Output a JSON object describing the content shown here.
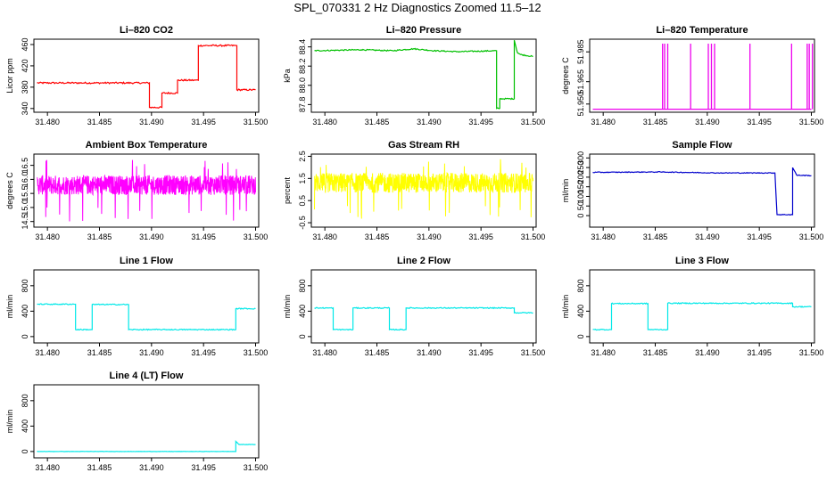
{
  "figure_title": "SPL_070331  2 Hz Diagnostics Zoomed 11.5–12",
  "chart_data": [
    {
      "type": "line",
      "title": "Li–820 CO2",
      "ylabel": "Licor ppm",
      "color": "#ff0000",
      "xlim": [
        31.4787,
        31.5003
      ],
      "ylim": [
        333,
        470
      ],
      "xticks": [
        "31.480",
        "31.485",
        "31.490",
        "31.495",
        "31.500"
      ],
      "yticks": [
        "340",
        "380",
        "420",
        "460"
      ],
      "ytick_values": [
        340,
        380,
        420,
        460
      ],
      "x": [
        31.479,
        31.4898,
        31.4898,
        31.491,
        31.491,
        31.4925,
        31.4925,
        31.4945,
        31.4945,
        31.4982,
        31.4982,
        31.5
      ],
      "y": [
        388,
        388,
        342,
        342,
        369,
        369,
        393,
        393,
        458,
        458,
        375,
        375
      ],
      "noise": 1.5
    },
    {
      "type": "line",
      "title": "Li–820 Pressure",
      "ylabel": "kPa",
      "color": "#00c000",
      "xlim": [
        31.4787,
        31.5003
      ],
      "ylim": [
        87.72,
        88.48
      ],
      "xticks": [
        "31.480",
        "31.485",
        "31.490",
        "31.495",
        "31.500"
      ],
      "yticks": [
        "87.8",
        "88.0",
        "88.2",
        "88.4"
      ],
      "ytick_values": [
        87.8,
        88.0,
        88.2,
        88.4
      ],
      "x": [
        31.479,
        31.4835,
        31.4865,
        31.4885,
        31.4905,
        31.4928,
        31.4965,
        31.4965,
        31.4968,
        31.4968,
        31.4982,
        31.4982,
        31.4985,
        31.4988,
        31.5
      ],
      "y": [
        88.36,
        88.37,
        88.36,
        88.38,
        88.36,
        88.35,
        88.36,
        87.76,
        87.76,
        87.86,
        87.86,
        88.47,
        88.34,
        88.32,
        88.3
      ],
      "noise": 0.006
    },
    {
      "type": "spikes",
      "title": "Li–820 Temperature",
      "ylabel": "degrees C",
      "color": "#ee00ee",
      "xlim": [
        31.4787,
        31.5003
      ],
      "ylim": [
        51.9445,
        51.9935
      ],
      "xticks": [
        "31.480",
        "31.485",
        "31.490",
        "31.495",
        "31.500"
      ],
      "yticks": [
        "51.950",
        "51.965",
        "51.985"
      ],
      "ytick_values": [
        51.95,
        51.965,
        51.985
      ],
      "base": 51.9465,
      "peak": 51.9905,
      "spikes_x": [
        31.4857,
        31.4859,
        31.4862,
        31.4884,
        31.4901,
        31.4904,
        31.4907,
        31.4941,
        31.4981,
        31.4996,
        31.4998,
        31.5001
      ]
    },
    {
      "type": "noise",
      "title": "Ambient Box Temperature",
      "ylabel": "degrees C",
      "color": "#ff00ff",
      "xlim": [
        31.4787,
        31.5003
      ],
      "ylim": [
        14.3,
        16.9
      ],
      "xticks": [
        "31.480",
        "31.485",
        "31.490",
        "31.495",
        "31.500"
      ],
      "yticks": [
        "14.5",
        "15.0",
        "15.5",
        "16.0",
        "16.5"
      ],
      "ytick_values": [
        14.5,
        15.0,
        15.5,
        16.0,
        16.5
      ],
      "x_range": [
        31.479,
        31.5
      ],
      "mean": 15.8,
      "amplitude": 0.35,
      "spike_min": 14.5,
      "spike_max": 16.7
    },
    {
      "type": "noise",
      "title": "Gas Stream RH",
      "ylabel": "percent",
      "color": "#ffff00",
      "xlim": [
        31.4787,
        31.5003
      ],
      "ylim": [
        -0.7,
        2.6
      ],
      "xticks": [
        "31.480",
        "31.485",
        "31.490",
        "31.495",
        "31.500"
      ],
      "yticks": [
        "-0.5",
        "0.5",
        "1.5",
        "2.5"
      ],
      "ytick_values": [
        -0.5,
        0.5,
        1.5,
        2.5
      ],
      "x_range": [
        31.479,
        31.5
      ],
      "mean": 1.3,
      "amplitude": 0.45,
      "spike_min": -0.4,
      "spike_max": 2.4
    },
    {
      "type": "line",
      "title": "Sample Flow",
      "ylabel": "ml/min",
      "color": "#0000cc",
      "xlim": [
        31.4787,
        31.5003
      ],
      "ylim": [
        -60,
        320
      ],
      "xticks": [
        "31.480",
        "31.485",
        "31.490",
        "31.495",
        "31.500"
      ],
      "yticks": [
        "0",
        "50",
        "100",
        "150",
        "200",
        "250",
        "300"
      ],
      "ytick_values": [
        0,
        50,
        100,
        150,
        200,
        250,
        300
      ],
      "x": [
        31.479,
        31.4855,
        31.491,
        31.4965,
        31.4967,
        31.4982,
        31.4982,
        31.4986,
        31.5
      ],
      "y": [
        225,
        227,
        222,
        222,
        5,
        5,
        250,
        210,
        208
      ],
      "noise": 2
    },
    {
      "type": "line",
      "title": "Line 1 Flow",
      "ylabel": "ml/min",
      "color": "#00e8e8",
      "xlim": [
        31.4787,
        31.5003
      ],
      "ylim": [
        -100,
        1050
      ],
      "xticks": [
        "31.480",
        "31.485",
        "31.490",
        "31.495",
        "31.500"
      ],
      "yticks": [
        "0",
        "400",
        "800"
      ],
      "ytick_values": [
        0,
        400,
        800
      ],
      "x": [
        31.479,
        31.4827,
        31.4827,
        31.4843,
        31.4843,
        31.4878,
        31.4878,
        31.4981,
        31.4981,
        31.5
      ],
      "y": [
        510,
        510,
        110,
        110,
        505,
        505,
        110,
        110,
        440,
        440
      ],
      "noise": 8
    },
    {
      "type": "line",
      "title": "Line 2 Flow",
      "ylabel": "ml/min",
      "color": "#00e8e8",
      "xlim": [
        31.4787,
        31.5003
      ],
      "ylim": [
        -100,
        1050
      ],
      "xticks": [
        "31.480",
        "31.485",
        "31.490",
        "31.495",
        "31.500"
      ],
      "yticks": [
        "0",
        "400",
        "800"
      ],
      "ytick_values": [
        0,
        400,
        800
      ],
      "x": [
        31.479,
        31.4808,
        31.4808,
        31.4827,
        31.4827,
        31.4862,
        31.4862,
        31.4878,
        31.4878,
        31.4982,
        31.4982,
        31.5
      ],
      "y": [
        450,
        450,
        110,
        110,
        450,
        450,
        110,
        110,
        450,
        450,
        375,
        375
      ],
      "noise": 8
    },
    {
      "type": "line",
      "title": "Line 3 Flow",
      "ylabel": "ml/min",
      "color": "#00e8e8",
      "xlim": [
        31.4787,
        31.5003
      ],
      "ylim": [
        -100,
        1050
      ],
      "xticks": [
        "31.480",
        "31.485",
        "31.490",
        "31.495",
        "31.500"
      ],
      "yticks": [
        "0",
        "400",
        "800"
      ],
      "ytick_values": [
        0,
        400,
        800
      ],
      "x": [
        31.479,
        31.4808,
        31.4808,
        31.4843,
        31.4843,
        31.4862,
        31.4862,
        31.4982,
        31.4982,
        31.5
      ],
      "y": [
        110,
        110,
        520,
        520,
        110,
        110,
        525,
        525,
        470,
        470
      ],
      "noise": 8
    },
    {
      "type": "line",
      "title": "Line 4 (LT) Flow",
      "ylabel": "ml/min",
      "color": "#00e8e8",
      "xlim": [
        31.4787,
        31.5003
      ],
      "ylim": [
        -100,
        1050
      ],
      "xticks": [
        "31.480",
        "31.485",
        "31.490",
        "31.495",
        "31.500"
      ],
      "yticks": [
        "0",
        "400",
        "800"
      ],
      "ytick_values": [
        0,
        400,
        800
      ],
      "x": [
        31.479,
        31.4981,
        31.4981,
        31.4984,
        31.5
      ],
      "y": [
        0,
        0,
        160,
        110,
        110
      ],
      "noise": 2
    }
  ]
}
